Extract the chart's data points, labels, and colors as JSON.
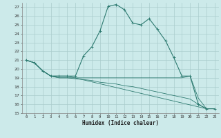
{
  "title": "",
  "xlabel": "Humidex (Indice chaleur)",
  "bg_color": "#cceaea",
  "grid_color": "#aacccc",
  "line_color": "#2d7a70",
  "xlim": [
    -0.5,
    23.5
  ],
  "ylim": [
    15,
    27.5
  ],
  "xticks": [
    0,
    1,
    2,
    3,
    4,
    5,
    6,
    7,
    8,
    9,
    10,
    11,
    12,
    13,
    14,
    15,
    16,
    17,
    18,
    19,
    20,
    21,
    22,
    23
  ],
  "yticks": [
    15,
    16,
    17,
    18,
    19,
    20,
    21,
    22,
    23,
    24,
    25,
    26,
    27
  ],
  "series1_x": [
    0,
    1,
    2,
    3,
    4,
    5,
    6,
    7,
    8,
    9,
    10,
    11,
    12,
    13,
    14,
    15,
    16,
    17,
    18,
    19,
    20,
    21,
    22,
    23
  ],
  "series1_y": [
    21.0,
    20.7,
    19.8,
    19.2,
    19.2,
    19.2,
    19.2,
    21.5,
    22.5,
    24.3,
    27.1,
    27.3,
    26.7,
    25.2,
    25.0,
    25.7,
    24.5,
    23.2,
    21.3,
    19.2,
    19.2,
    16.0,
    15.5,
    15.5
  ],
  "series2_x": [
    0,
    1,
    2,
    3,
    4,
    5,
    22,
    23
  ],
  "series2_y": [
    21.0,
    20.7,
    19.8,
    19.2,
    19.2,
    19.2,
    15.5,
    15.5
  ],
  "series3_x": [
    0,
    1,
    2,
    3,
    4,
    5,
    6,
    7,
    8,
    9,
    10,
    11,
    12,
    13,
    14,
    15,
    16,
    17,
    18,
    19,
    20,
    21,
    22,
    23
  ],
  "series3_y": [
    21.0,
    20.7,
    19.8,
    19.2,
    19.0,
    19.0,
    18.9,
    18.8,
    18.7,
    18.5,
    18.4,
    18.3,
    18.1,
    18.0,
    17.8,
    17.6,
    17.4,
    17.2,
    17.0,
    16.8,
    16.6,
    16.0,
    15.5,
    15.5
  ],
  "series4_x": [
    0,
    1,
    2,
    3,
    4,
    5,
    6,
    7,
    8,
    9,
    10,
    11,
    12,
    13,
    14,
    15,
    16,
    17,
    18,
    19,
    20,
    21,
    22,
    23
  ],
  "series4_y": [
    21.0,
    20.7,
    19.8,
    19.2,
    19.0,
    19.0,
    19.0,
    19.0,
    19.0,
    19.0,
    19.0,
    19.0,
    19.0,
    19.0,
    19.0,
    19.0,
    19.0,
    19.0,
    19.0,
    19.0,
    19.2,
    16.7,
    15.5,
    15.5
  ]
}
